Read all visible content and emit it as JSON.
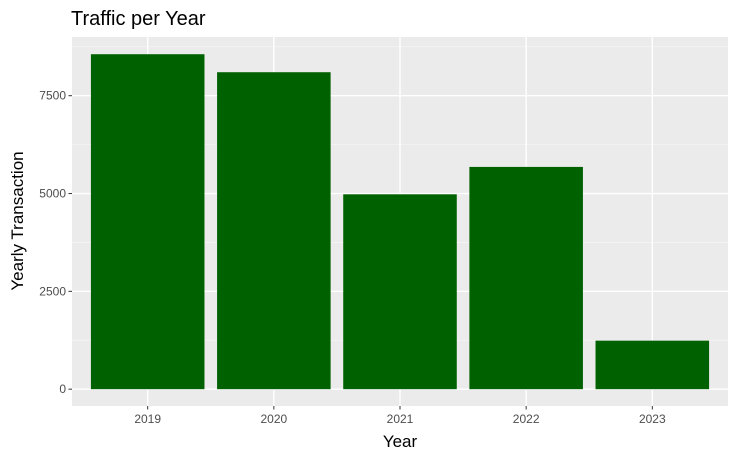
{
  "chart_data": {
    "type": "bar",
    "title": "Traffic per Year",
    "xlabel": "Year",
    "ylabel": "Yearly Transaction",
    "categories": [
      "2019",
      "2020",
      "2021",
      "2022",
      "2023"
    ],
    "values": [
      8560,
      8100,
      4980,
      5680,
      1240
    ],
    "ylim": [
      -430,
      9000
    ],
    "yticks": [
      0,
      2500,
      5000,
      7500
    ],
    "ytick_labels": [
      "0",
      "2500",
      "5000",
      "7500"
    ],
    "grid": true,
    "legend": "none",
    "colors": {
      "bar": "#006100",
      "panel": "#ebebeb",
      "grid_major": "#ffffff",
      "grid_minor": "#f5f5f5",
      "tick": "#333333"
    }
  }
}
